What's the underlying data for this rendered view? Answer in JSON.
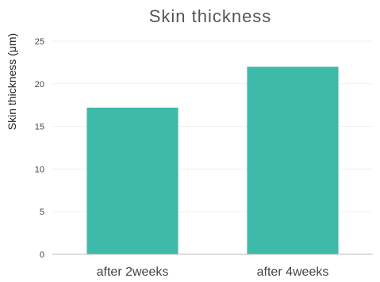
{
  "chart_data": {
    "type": "bar",
    "title": "Skin thickness",
    "xlabel": "",
    "ylabel": "Skin thickness (μm)",
    "categories": [
      "after 2weeks",
      "after 4weeks"
    ],
    "values": [
      17.2,
      22.0
    ],
    "ylim": [
      0,
      25
    ],
    "yticks": [
      0,
      5,
      10,
      15,
      20,
      25
    ],
    "grid": true,
    "legend": "none",
    "bar_color": "#3dbaa9"
  }
}
